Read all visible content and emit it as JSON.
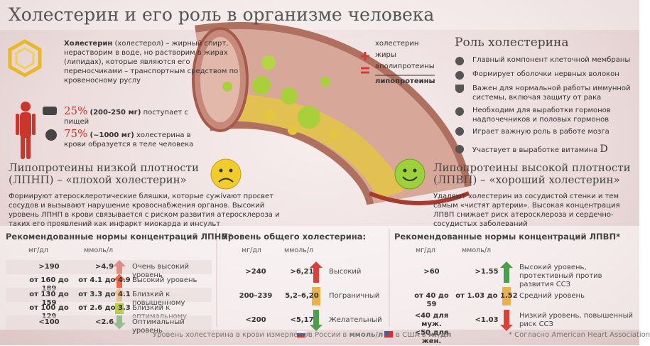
{
  "header": {
    "title": "Холестерин и его роль в организме человека"
  },
  "intro": {
    "term": "Холестерин",
    "text": " (холестерол) – жирный спирт, нерастворим в воде, но растворим в жирах (липидах), которые являются его переносчиками – транспортным средством по кровеносному руслу"
  },
  "sources": [
    {
      "percent": "25%",
      "amount": "(200-250 мг)",
      "text": " поступает с пищей"
    },
    {
      "percent": "75%",
      "amount": "(~1000 мг)",
      "text": " холестерина в крови образуется в теле человека"
    }
  ],
  "formula": {
    "parts": [
      "холестерин",
      "жиры",
      "аполипротеины"
    ],
    "result": "липопротеины"
  },
  "role": {
    "title": "Роль холестерина",
    "items": [
      "Главный компонент клеточной мембраны",
      "Формирует оболочки нервных волокон",
      "Важен для нормальной работы иммунной системы, включая защиту от рака",
      "Необходим для выработки гормонов надпочечников и половых гормонов",
      "Играет важную роль в работе мозга",
      "Участвует в выработке витамина"
    ],
    "vitamin": "D"
  },
  "ldl": {
    "title": "Липопротеины низкой плотности (ЛПНП) – «плохой холестерин»",
    "text": "Формируют атеросклеротические бляшки, которые сужívают просвет сосудов и вызывают нарушение кровоснабжения органов. Высокий уровень ЛПНП в крови связывается с риском развития атеросклероза и таких его проявлений как инфаркт миокарда и инсульт"
  },
  "hdl": {
    "title": "Липопротеины высокой плотности (ЛПВП) – «хороший холестерин»",
    "text": "Удаляют холестерин из сосудистой стенки и тем самым «чистят артерии». Высокая концентрация ЛПВП снижает риск атеросклероза и сердечно-сосудистых заболеваний"
  },
  "tables": [
    {
      "title": "Рекомендованные нормы концентраций ЛПНП*",
      "headers": [
        "мг/дл",
        "ммоль/л"
      ],
      "rows": [
        [
          ">190",
          ">4.9",
          "Очень высокий уровень"
        ],
        [
          "от 160 до 189",
          "от 4.1 до 4.9",
          "Высокий уровень"
        ],
        [
          "от 130 до 159",
          "от 3.3 до 4.1",
          "Близкий к повышенному"
        ],
        [
          "от 100 до 129",
          "от 2.6 до 3.3",
          "Близкий к оптимальному"
        ],
        [
          "<100",
          "<2.6",
          "Оптимальный уровень"
        ]
      ]
    },
    {
      "title": "Уровень общего холестерина:",
      "headers": [
        "мг/дл",
        "ммоль/л"
      ],
      "rows": [
        [
          ">240",
          ">6,21",
          "Высокий"
        ],
        [
          "200–239",
          "5,2–6,20",
          "Пограничный"
        ],
        [
          "<200",
          "<5,17",
          "Желательный"
        ]
      ]
    },
    {
      "title": "Рекомендованные нормы концентраций ЛПВП*",
      "headers": [
        "мг/дл",
        "ммоль/л"
      ],
      "rows": [
        [
          ">60",
          ">1.55",
          "Высокий уровень, протективный против развития ССЗ"
        ],
        [
          "от 40 до 59",
          "от 1.03 до 1.52",
          "Средний уровень"
        ],
        [
          [
            "<40 для муж.",
            "<50 для жен."
          ],
          "<1.03",
          "Низкий уровень, повышенный риск ССЗ"
        ]
      ]
    }
  ],
  "footer": {
    "lead": "Уровень холестерина в крови измеряется:",
    "ru": "в России в",
    "ru_unit": "ммоль/л",
    "us": "в США в",
    "us_unit": "мг/дл",
    "note": "* Согласно American Heart Association"
  }
}
